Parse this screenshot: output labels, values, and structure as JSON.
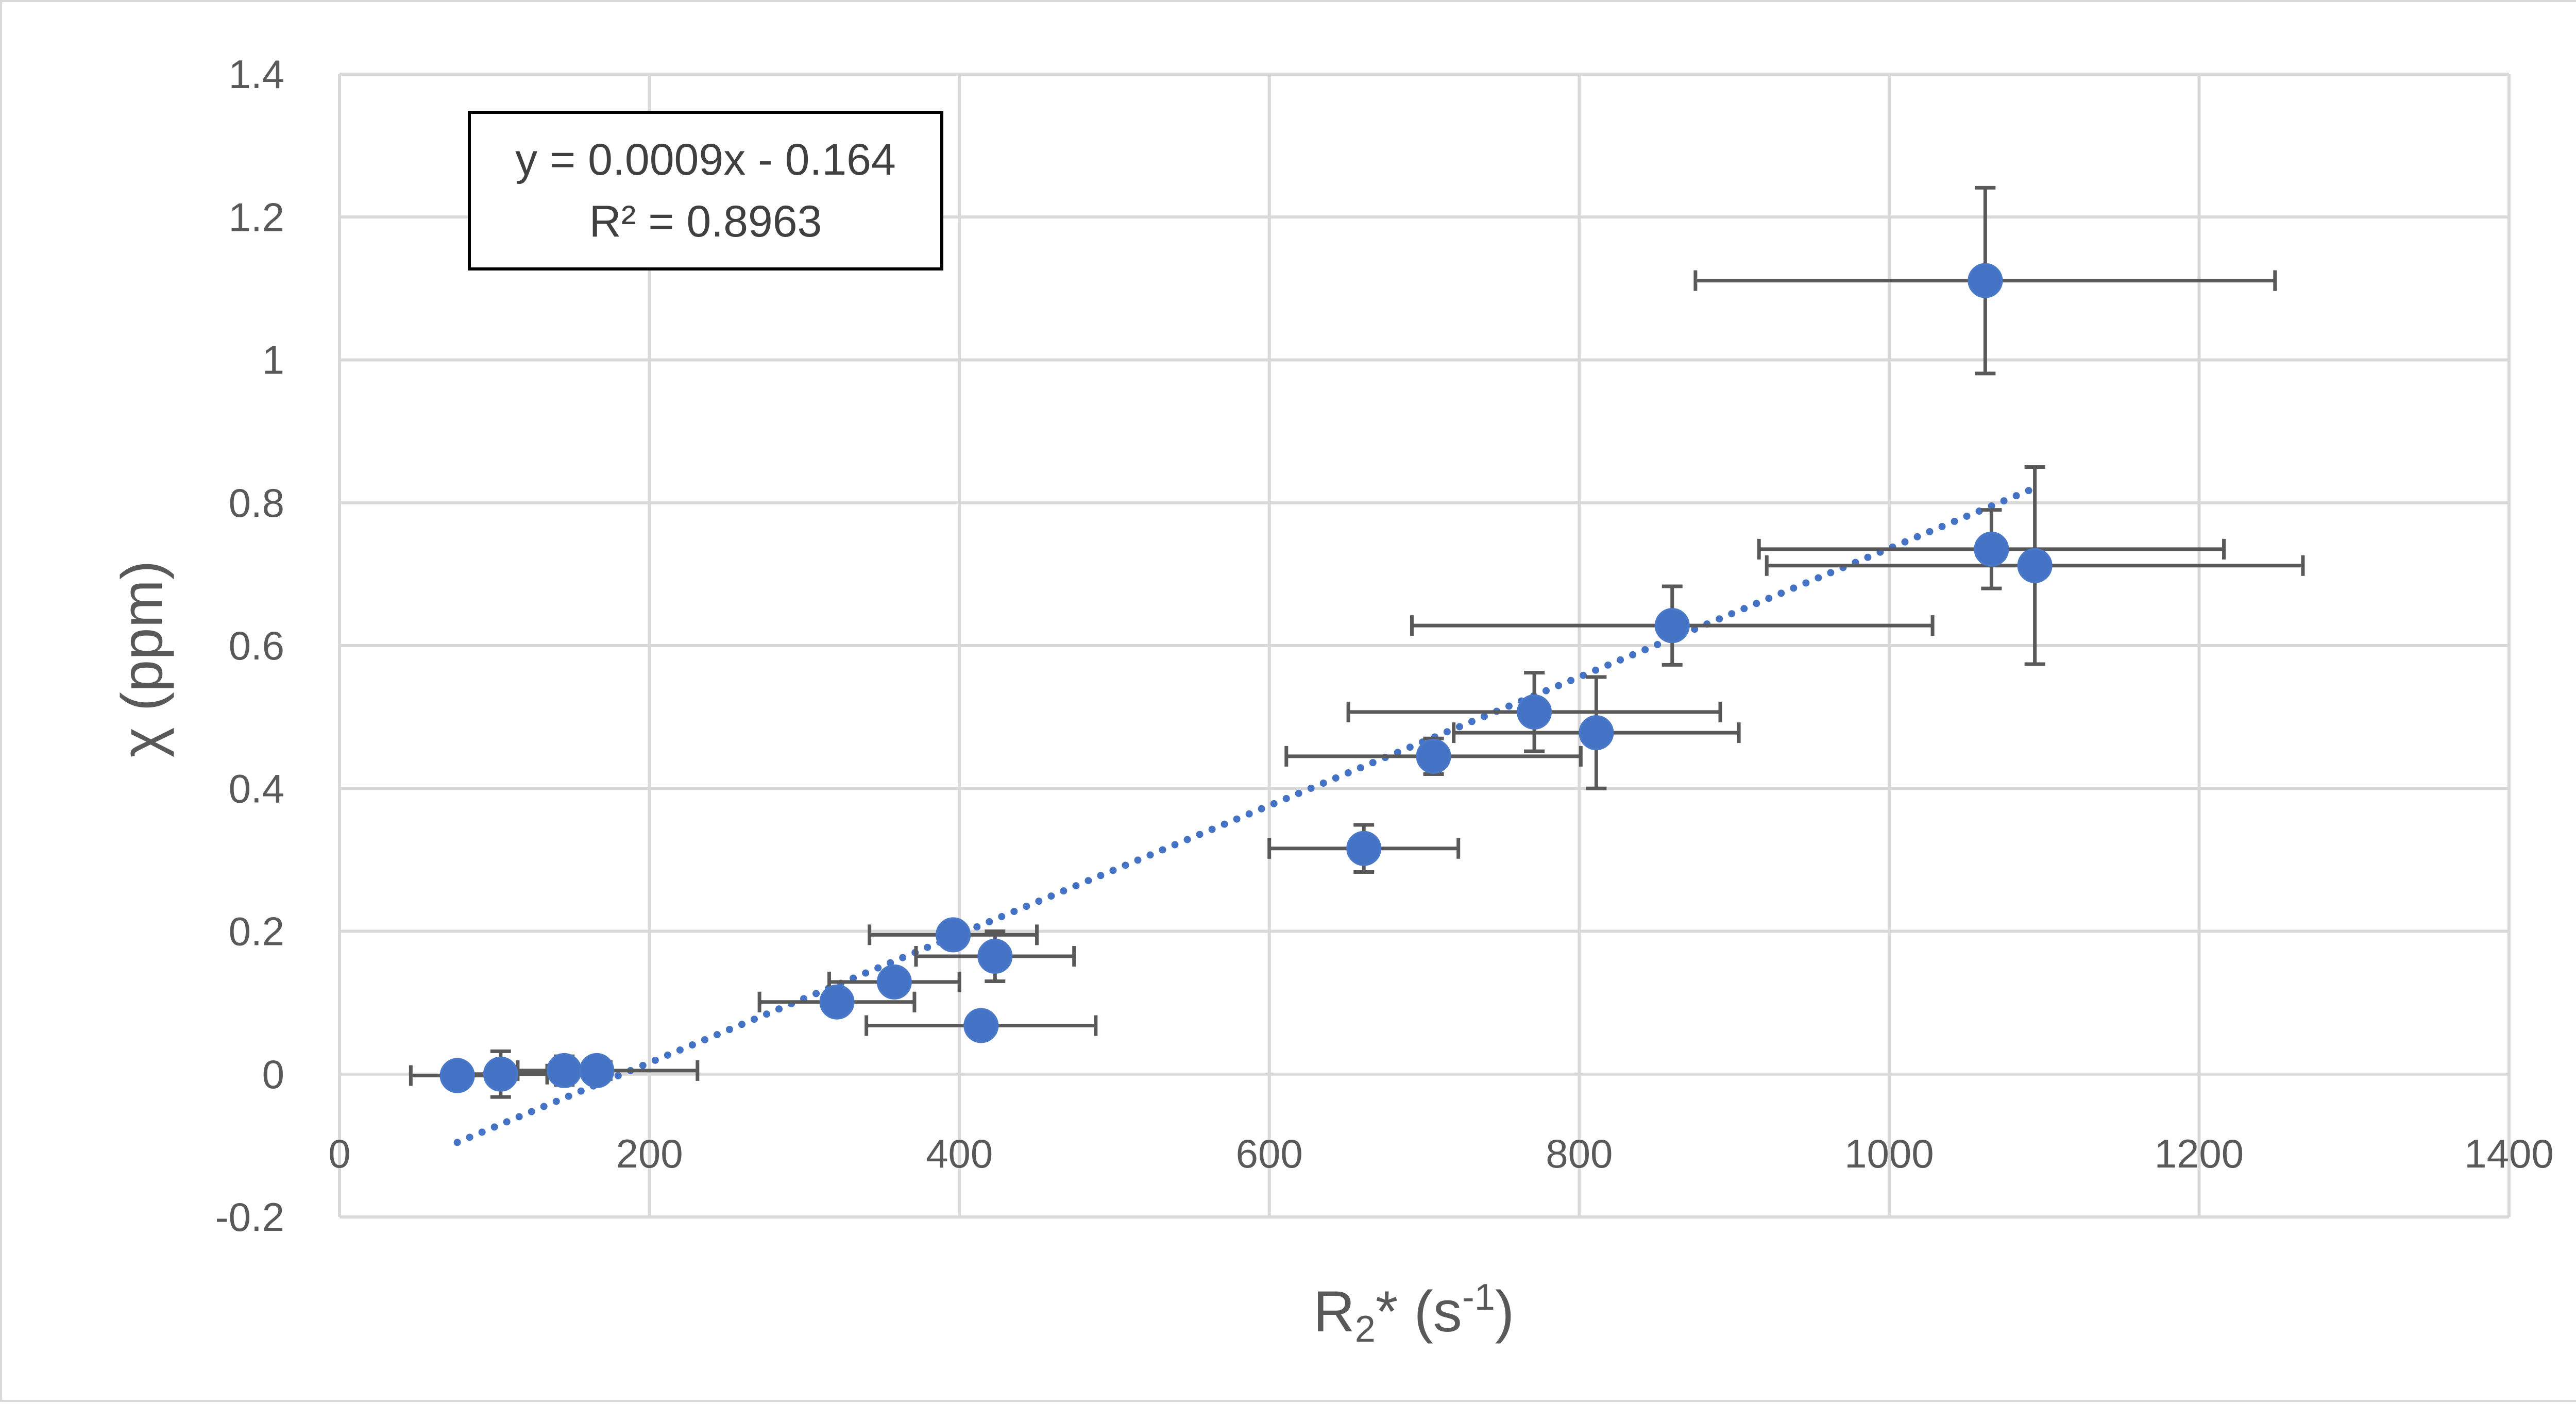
{
  "colors": {
    "marker": "#4472c4",
    "trendline": "#4472c4",
    "error_bar": "#595959",
    "grid": "#d9d9d9",
    "text": "#595959"
  },
  "chart_data": {
    "type": "scatter",
    "title": "",
    "xlabel": {
      "base": "R",
      "sub": "2",
      "mid": "* (s",
      "sup": "-1",
      "end": ")"
    },
    "ylabel": "χ (ppm)",
    "xlim": [
      0,
      1400
    ],
    "ylim": [
      -0.2,
      1.4
    ],
    "xticks": [
      "0",
      "200",
      "400",
      "600",
      "800",
      "1000",
      "1200",
      "1400"
    ],
    "yticks": [
      "-0.2",
      "0",
      "0.2",
      "0.4",
      "0.6",
      "0.8",
      "1",
      "1.2",
      "1.4"
    ],
    "grid": true,
    "legend": "none",
    "points": [
      {
        "x": 76,
        "y": -0.002,
        "xerr": 30,
        "yerr": 0.015
      },
      {
        "x": 104,
        "y": 0.0,
        "xerr": 30,
        "yerr": 0.032
      },
      {
        "x": 145,
        "y": 0.005,
        "xerr": 30,
        "yerr": 0.02
      },
      {
        "x": 166,
        "y": 0.005,
        "xerr": 65,
        "yerr": 0.01
      },
      {
        "x": 321,
        "y": 0.101,
        "xerr": 50,
        "yerr": 0.015
      },
      {
        "x": 358,
        "y": 0.129,
        "xerr": 42,
        "yerr": 0.015
      },
      {
        "x": 396,
        "y": 0.195,
        "xerr": 54,
        "yerr": 0.01
      },
      {
        "x": 423,
        "y": 0.165,
        "xerr": 51,
        "yerr": 0.035
      },
      {
        "x": 414,
        "y": 0.068,
        "xerr": 74,
        "yerr": 0.01
      },
      {
        "x": 661,
        "y": 0.316,
        "xerr": 61,
        "yerr": 0.033
      },
      {
        "x": 706,
        "y": 0.445,
        "xerr": 95,
        "yerr": 0.025
      },
      {
        "x": 771,
        "y": 0.507,
        "xerr": 120,
        "yerr": 0.055
      },
      {
        "x": 811,
        "y": 0.478,
        "xerr": 92,
        "yerr": 0.078
      },
      {
        "x": 860,
        "y": 0.628,
        "xerr": 168,
        "yerr": 0.055
      },
      {
        "x": 1062,
        "y": 1.111,
        "xerr": 187,
        "yerr": 0.13
      },
      {
        "x": 1066,
        "y": 0.735,
        "xerr": 150,
        "yerr": 0.055
      },
      {
        "x": 1094,
        "y": 0.712,
        "xerr": 173,
        "yerr": 0.138
      }
    ],
    "trendline": {
      "type": "linear",
      "dotted": true,
      "x_range": [
        76,
        1094
      ],
      "slope": 0.0009,
      "intercept": -0.164,
      "equation": "y = 0.0009x - 0.164",
      "r_squared": "R² = 0.8963"
    }
  }
}
